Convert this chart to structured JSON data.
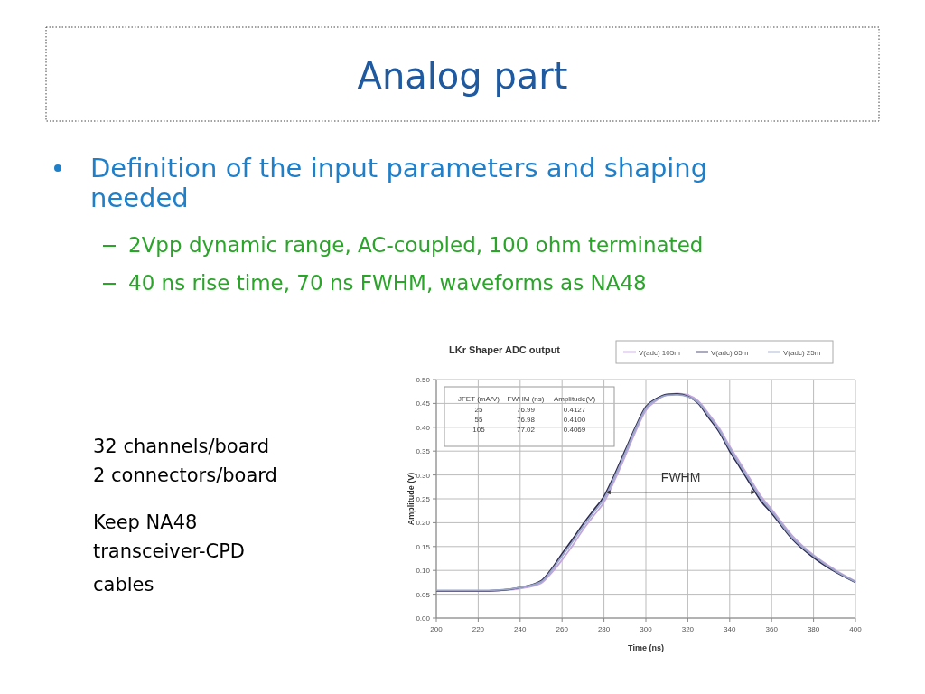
{
  "chart_data": {
    "type": "line",
    "title": "LKr Shaper ADC output",
    "xlabel": "Time (ns)",
    "ylabel": "Amplitude (V)",
    "x": [
      200,
      210,
      220,
      230,
      240,
      250,
      255,
      260,
      265,
      270,
      275,
      280,
      285,
      290,
      295,
      300,
      305,
      310,
      315,
      320,
      325,
      330,
      335,
      340,
      345,
      350,
      355,
      360,
      370,
      380,
      390,
      400
    ],
    "series": [
      {
        "name": "V(adc) 105m",
        "color": "#c4a6de",
        "values": [
          0.057,
          0.057,
          0.057,
          0.058,
          0.062,
          0.073,
          0.095,
          0.122,
          0.152,
          0.185,
          0.214,
          0.243,
          0.288,
          0.338,
          0.39,
          0.435,
          0.456,
          0.468,
          0.471,
          0.468,
          0.455,
          0.428,
          0.398,
          0.36,
          0.325,
          0.29,
          0.255,
          0.228,
          0.172,
          0.132,
          0.102,
          0.077
        ]
      },
      {
        "name": "V(adc) 65m",
        "color": "#2e2b55",
        "values": [
          0.057,
          0.057,
          0.057,
          0.058,
          0.064,
          0.078,
          0.103,
          0.135,
          0.165,
          0.197,
          0.226,
          0.255,
          0.3,
          0.35,
          0.4,
          0.443,
          0.46,
          0.469,
          0.47,
          0.465,
          0.45,
          0.42,
          0.39,
          0.35,
          0.315,
          0.28,
          0.245,
          0.22,
          0.165,
          0.127,
          0.098,
          0.075
        ]
      },
      {
        "name": "V(adc) 25m",
        "color": "#9aa6c6",
        "values": [
          0.058,
          0.058,
          0.058,
          0.059,
          0.064,
          0.076,
          0.1,
          0.13,
          0.16,
          0.192,
          0.221,
          0.25,
          0.295,
          0.345,
          0.396,
          0.44,
          0.458,
          0.467,
          0.468,
          0.464,
          0.452,
          0.424,
          0.394,
          0.355,
          0.32,
          0.285,
          0.25,
          0.224,
          0.168,
          0.13,
          0.1,
          0.076
        ]
      }
    ],
    "xlim": [
      200,
      400
    ],
    "xticks": [
      200,
      220,
      240,
      260,
      280,
      300,
      320,
      340,
      360,
      380,
      400
    ],
    "ylim": [
      0,
      0.5
    ],
    "yticks": [
      {
        "value": 0,
        "label": "0.00"
      },
      {
        "value": 0.05,
        "label": "0.05"
      },
      {
        "value": 0.1,
        "label": "0.10"
      },
      {
        "value": 0.15,
        "label": "0.15"
      },
      {
        "value": 0.2,
        "label": "0.20"
      },
      {
        "value": 0.25,
        "label": "0.25"
      },
      {
        "value": 0.3,
        "label": "0.30"
      },
      {
        "value": 0.35,
        "label": "0.35"
      },
      {
        "value": 0.4,
        "label": "0.40"
      },
      {
        "value": 0.45,
        "label": "0.45"
      },
      {
        "value": 0.5,
        "label": "0.50"
      }
    ],
    "grid": true,
    "legend": "top right",
    "marker": "none",
    "line_style": "solid",
    "annotations": [
      "Analog part",
      "Definition of the input parameters and shaping needed",
      "2Vpp dynamic range, AC-coupled, 100 ohm terminated",
      "40 ns rise time, 70 ns FWHM, waveforms as NA48",
      "32 channels/board",
      "2 connectors/board",
      "Keep NA48",
      "transceiver-CPD",
      "cables",
      "JFET (mA/V)",
      "FWHM (ns)",
      "Amplitude(V)",
      "25",
      "76.99",
      "0.4127",
      "55",
      "76.98",
      "0.4100",
      "105",
      "77.02",
      "0.4069",
      "FWHM"
    ]
  }
}
